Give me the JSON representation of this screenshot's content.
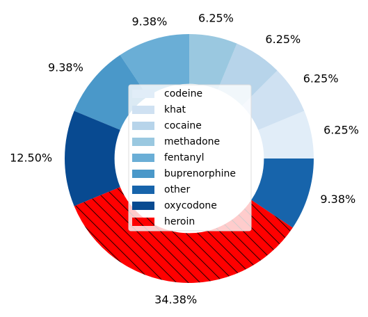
{
  "chart_data": {
    "type": "donut",
    "categories": [
      "codeine",
      "khat",
      "cocaine",
      "methadone",
      "fentanyl",
      "buprenorphine",
      "other",
      "oxycodone",
      "heroin"
    ],
    "values": [
      6.25,
      6.25,
      6.25,
      6.25,
      9.38,
      9.38,
      9.38,
      12.5,
      34.38
    ],
    "value_labels": [
      "6.25%",
      "6.25%",
      "6.25%",
      "6.25%",
      "9.38%",
      "9.38%",
      "9.38%",
      "12.50%",
      "34.38%"
    ],
    "colors": [
      "#e1edf8",
      "#cfe1f2",
      "#b7d4ea",
      "#9ac8e0",
      "#6aaed6",
      "#4a98c9",
      "#1764ab",
      "#084a91",
      "#ff0000"
    ],
    "hatch": [
      false,
      false,
      false,
      false,
      false,
      false,
      false,
      false,
      true
    ],
    "legend": "center"
  }
}
